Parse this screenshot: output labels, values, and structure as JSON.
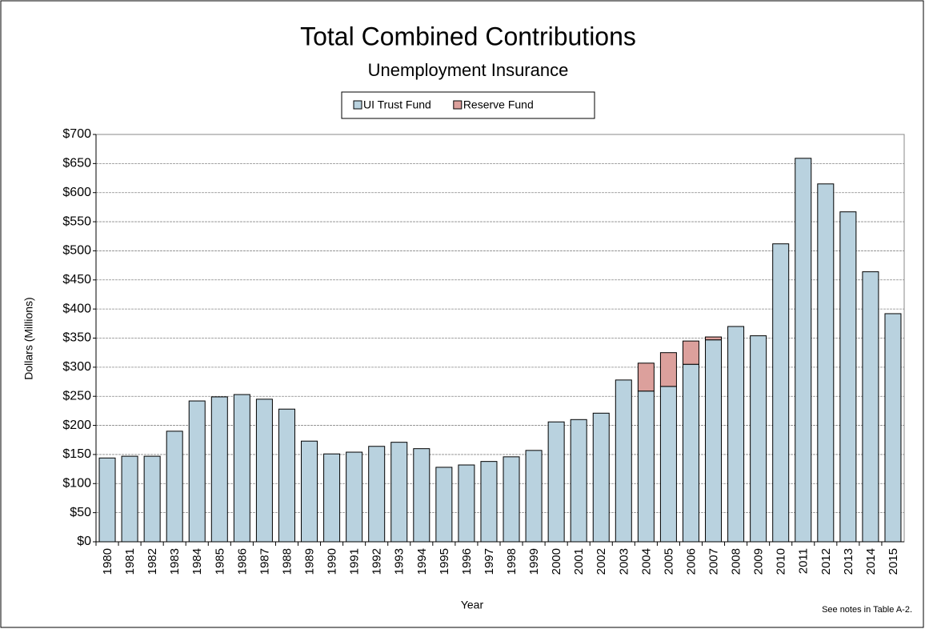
{
  "chart_data": {
    "type": "stacked_bar",
    "title": "Total Combined Contributions",
    "subtitle": "Unemployment Insurance",
    "x_label": "Year",
    "y_label": "Dollars (Millions)",
    "note": "See notes  in Table A-2.",
    "categories": [
      "1980",
      "1981",
      "1982",
      "1983",
      "1984",
      "1985",
      "1986",
      "1987",
      "1988",
      "1989",
      "1990",
      "1991",
      "1992",
      "1993",
      "1994",
      "1995",
      "1996",
      "1997",
      "1998",
      "1999",
      "2000",
      "2001",
      "2002",
      "2003",
      "2004",
      "2005",
      "2006",
      "2007",
      "2008",
      "2009",
      "2010",
      "2011",
      "2012",
      "2013",
      "2014",
      "2015"
    ],
    "series": [
      {
        "name": "UI Trust Fund",
        "color": "#b9d2df",
        "values": [
          144,
          147,
          147,
          190,
          242,
          249,
          253,
          245,
          228,
          173,
          151,
          154,
          164,
          171,
          160,
          128,
          132,
          138,
          146,
          157,
          206,
          210,
          221,
          278,
          259,
          267,
          305,
          347,
          370,
          354,
          512,
          659,
          615,
          567,
          464,
          392
        ]
      },
      {
        "name": "Reserve Fund",
        "color": "#dca09c",
        "values": [
          null,
          null,
          null,
          null,
          null,
          null,
          null,
          null,
          null,
          null,
          null,
          null,
          null,
          null,
          null,
          null,
          null,
          null,
          null,
          null,
          null,
          null,
          null,
          null,
          48,
          58,
          40,
          5,
          null,
          null,
          null,
          null,
          null,
          null,
          null,
          null
        ]
      }
    ],
    "ylim": [
      0,
      700
    ],
    "yticks": [
      {
        "value": 0,
        "label": "$0"
      },
      {
        "value": 50,
        "label": "$50"
      },
      {
        "value": 100,
        "label": "$100"
      },
      {
        "value": 150,
        "label": "$150"
      },
      {
        "value": 200,
        "label": "$200"
      },
      {
        "value": 250,
        "label": "$250"
      },
      {
        "value": 300,
        "label": "$300"
      },
      {
        "value": 350,
        "label": "$350"
      },
      {
        "value": 400,
        "label": "$400"
      },
      {
        "value": 450,
        "label": "$450"
      },
      {
        "value": 500,
        "label": "$500"
      },
      {
        "value": 550,
        "label": "$550"
      },
      {
        "value": 600,
        "label": "$600"
      },
      {
        "value": 650,
        "label": "$650"
      },
      {
        "value": 700,
        "label": "$700"
      }
    ],
    "grid": true,
    "legend": "top"
  }
}
